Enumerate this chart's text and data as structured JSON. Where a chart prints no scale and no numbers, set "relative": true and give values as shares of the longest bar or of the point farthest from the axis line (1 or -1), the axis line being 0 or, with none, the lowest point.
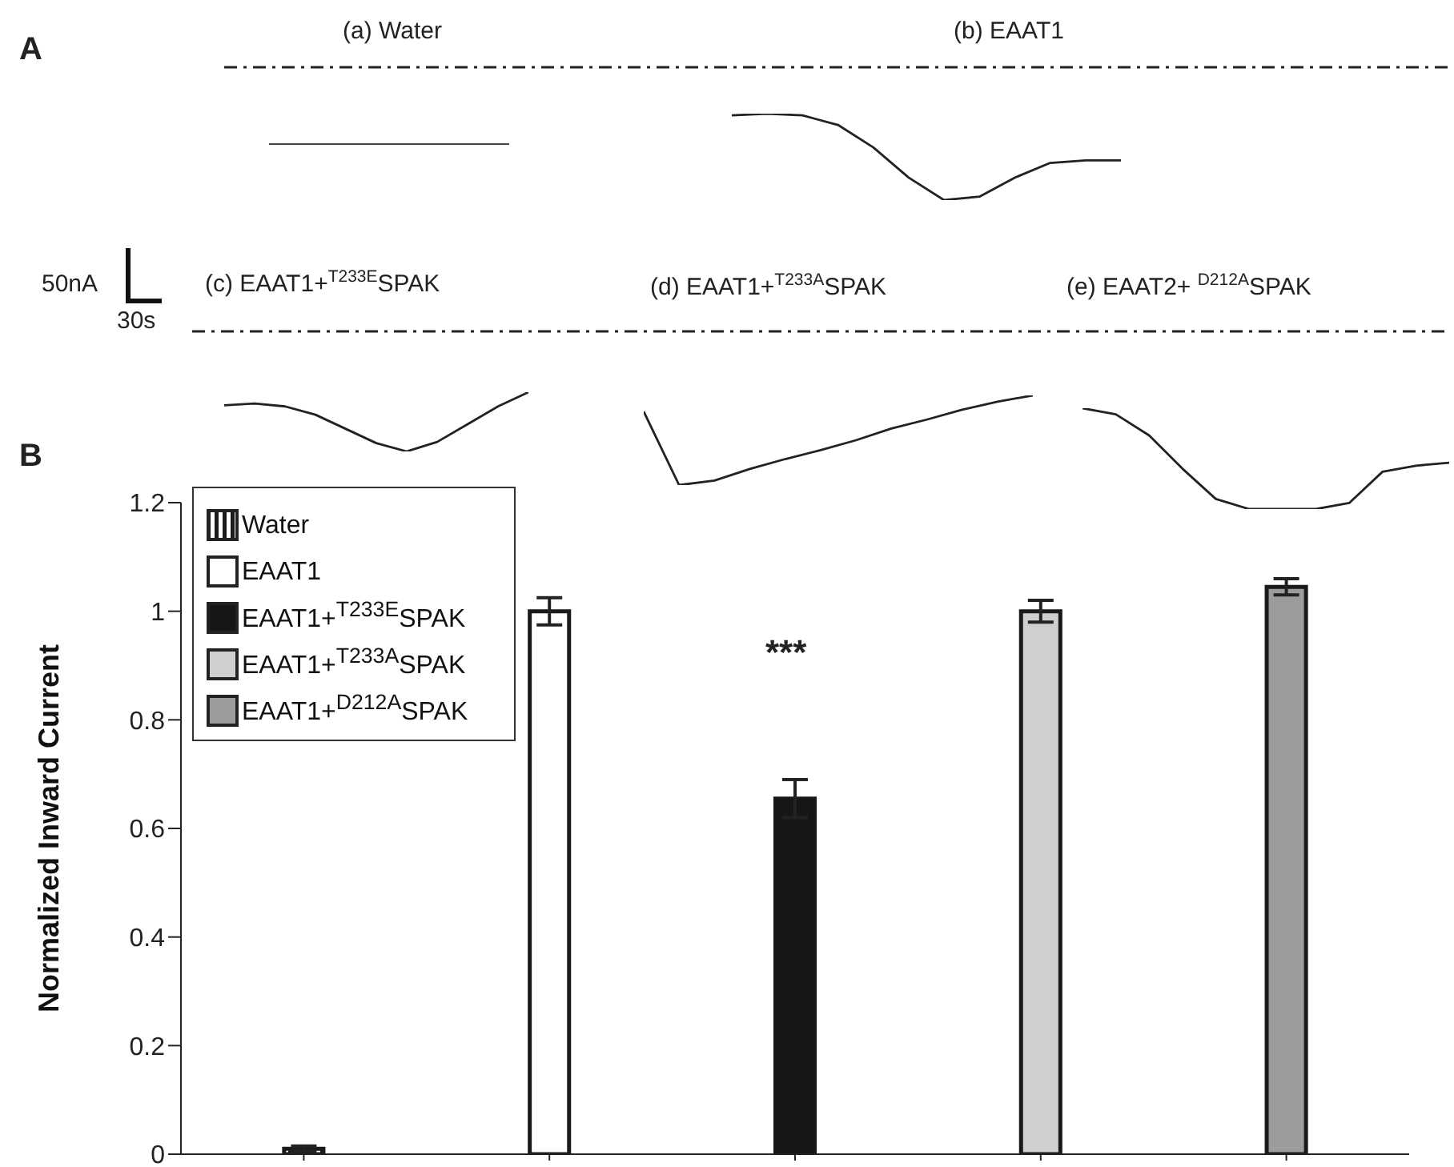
{
  "chart_data": [
    {
      "type": "other",
      "annotations": [
        "A",
        "50nA",
        "30s"
      ]
    },
    {
      "type": "other",
      "annotations": [
        "(a) Water"
      ]
    },
    {
      "type": "line",
      "title": "(b) EAAT1",
      "relative": true,
      "categories": [
        null,
        null,
        null,
        null,
        null,
        null,
        null,
        null,
        null,
        null,
        null,
        null
      ],
      "series": [
        {
          "color": "#222222",
          "values": [
            0.98,
            1,
            0.98,
            0.87,
            0.61,
            0.26,
            0,
            0.04,
            0.26,
            0.43,
            0.46,
            0.46
          ]
        }
      ]
    },
    {
      "type": "line",
      "title": "(c) EAAT1+$^{T233E}$SPAK",
      "relative": true,
      "categories": [
        null,
        null,
        null,
        null,
        null,
        null,
        null,
        null,
        null,
        null,
        null
      ],
      "series": [
        {
          "color": "#222222",
          "values": [
            0.78,
            0.81,
            0.76,
            0.62,
            0.38,
            0.14,
            0,
            0.16,
            0.46,
            0.76,
            1
          ]
        }
      ]
    },
    {
      "type": "line",
      "title": "(d) EAAT1+$^{T233A}$SPAK",
      "relative": true,
      "categories": [
        null,
        null,
        null,
        null,
        null,
        null,
        null,
        null,
        null,
        null,
        null,
        null
      ],
      "series": [
        {
          "color": "#222222",
          "values": [
            0.82,
            0,
            0.05,
            0.18,
            0.29,
            0.39,
            0.5,
            0.63,
            0.73,
            0.84,
            0.93,
            1
          ]
        }
      ]
    },
    {
      "type": "line",
      "title": "(e) EAAT2+ $^{D212A}$SPAK",
      "relative": true,
      "categories": [
        null,
        null,
        null,
        null,
        null,
        null,
        null,
        null,
        null,
        null,
        null,
        null
      ],
      "series": [
        {
          "color": "#222222",
          "values": [
            1,
            0.94,
            0.73,
            0.4,
            0.1,
            0,
            0,
            0,
            0.06,
            0.37,
            0.43,
            0.46
          ]
        }
      ]
    },
    {
      "type": "bar",
      "ylabel": "Normalized Inward Current",
      "categories": [
        null,
        null,
        null,
        null,
        null
      ],
      "ylim": [
        0,
        1.2
      ],
      "yticks": [
        0,
        0.2,
        0.4,
        0.6,
        0.8,
        1,
        1.2
      ],
      "legend": "top left",
      "series": [
        {
          "name": "Water",
          "color": "#1a1a1a",
          "values": [
            0.01,
            null,
            null,
            null,
            null
          ],
          "errors": [
            0.005,
            null,
            null,
            null,
            null
          ]
        },
        {
          "name": "EAAT1",
          "color": "#ffffff",
          "values": [
            null,
            1.0,
            null,
            null,
            null
          ],
          "errors": [
            null,
            0.025,
            null,
            null,
            null
          ]
        },
        {
          "name": "EAAT1+$^{T233E}$SPAK",
          "color": "#161616",
          "values": [
            null,
            null,
            0.655,
            null,
            null
          ],
          "errors": [
            null,
            null,
            0.035,
            null,
            null
          ]
        },
        {
          "name": "EAAT1+$^{T233A}$SPAK",
          "color": "#cfcfcf",
          "values": [
            null,
            null,
            null,
            1.0,
            null
          ],
          "errors": [
            null,
            null,
            null,
            0.02,
            null
          ]
        },
        {
          "name": "EAAT1+$^{D212A}$SPAK",
          "color": "#9c9c9c",
          "values": [
            null,
            null,
            null,
            null,
            1.045
          ],
          "errors": [
            null,
            null,
            null,
            null,
            0.015
          ]
        }
      ],
      "annotations": [
        "B",
        "***"
      ]
    }
  ]
}
